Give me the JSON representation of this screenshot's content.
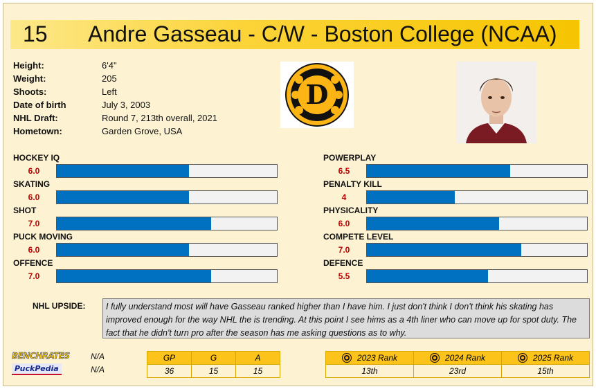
{
  "header": {
    "number": "15",
    "title": "Andre Gasseau - C/W - Boston College (NCAA)"
  },
  "bio": [
    {
      "label": "Height:",
      "value": "6'4\""
    },
    {
      "label": "Weight:",
      "value": "205"
    },
    {
      "label": "Shoots:",
      "value": "Left"
    },
    {
      "label": "Date of birth",
      "value": "July 3, 2003"
    },
    {
      "label": "NHL Draft:",
      "value": "Round 7, 213th overall, 2021"
    },
    {
      "label": "Hometown:",
      "value": "Garden Grove, USA"
    }
  ],
  "logo": {
    "letter": "D",
    "icon": "bruins-logo-icon"
  },
  "photo": {
    "icon": "player-headshot"
  },
  "skills_left": [
    {
      "name": "HOCKEY IQ",
      "value": "6.0",
      "rating": 6.0
    },
    {
      "name": "SKATING",
      "value": "6.0",
      "rating": 6.0
    },
    {
      "name": "SHOT",
      "value": "7.0",
      "rating": 7.0
    },
    {
      "name": "PUCK MOVING",
      "value": "6.0",
      "rating": 6.0
    },
    {
      "name": "OFFENCE",
      "value": "7.0",
      "rating": 7.0
    }
  ],
  "skills_right": [
    {
      "name": "POWERPLAY",
      "value": "6.5",
      "rating": 6.5
    },
    {
      "name": "PENALTY KILL",
      "value": "4",
      "rating": 4.0
    },
    {
      "name": "PHYSICALITY",
      "value": "6.0",
      "rating": 6.0
    },
    {
      "name": "COMPETE LEVEL",
      "value": "7.0",
      "rating": 7.0
    },
    {
      "name": "DEFENCE",
      "value": "5.5",
      "rating": 5.5
    }
  ],
  "upside": {
    "label": "NHL UPSIDE:",
    "text": "I fully understand most will have Gasseau ranked higher than I have him. I just don't think I don't think his skating has improved enough for the way NHL the is trending. At this point I see hims as a 4th liner who can move up for spot duty. The fact that he didn't turn pro after the season has me asking questions as to why."
  },
  "branding": {
    "line1": "BENCHRATES",
    "line2": "PuckPedia"
  },
  "na": [
    "N/A",
    "N/A"
  ],
  "stats": {
    "headers": [
      "GP",
      "G",
      "A"
    ],
    "values": [
      "36",
      "15",
      "15"
    ]
  },
  "ranks": {
    "headers": [
      "2023 Rank",
      "2024 Rank",
      "2025 Rank"
    ],
    "values": [
      "13th",
      "23rd",
      "15th"
    ]
  },
  "colors": {
    "header_gold": "#fcd43a",
    "bar_fill": "#0070c0",
    "rating_red": "#c00000",
    "card_bg": "#fdf2d2"
  }
}
